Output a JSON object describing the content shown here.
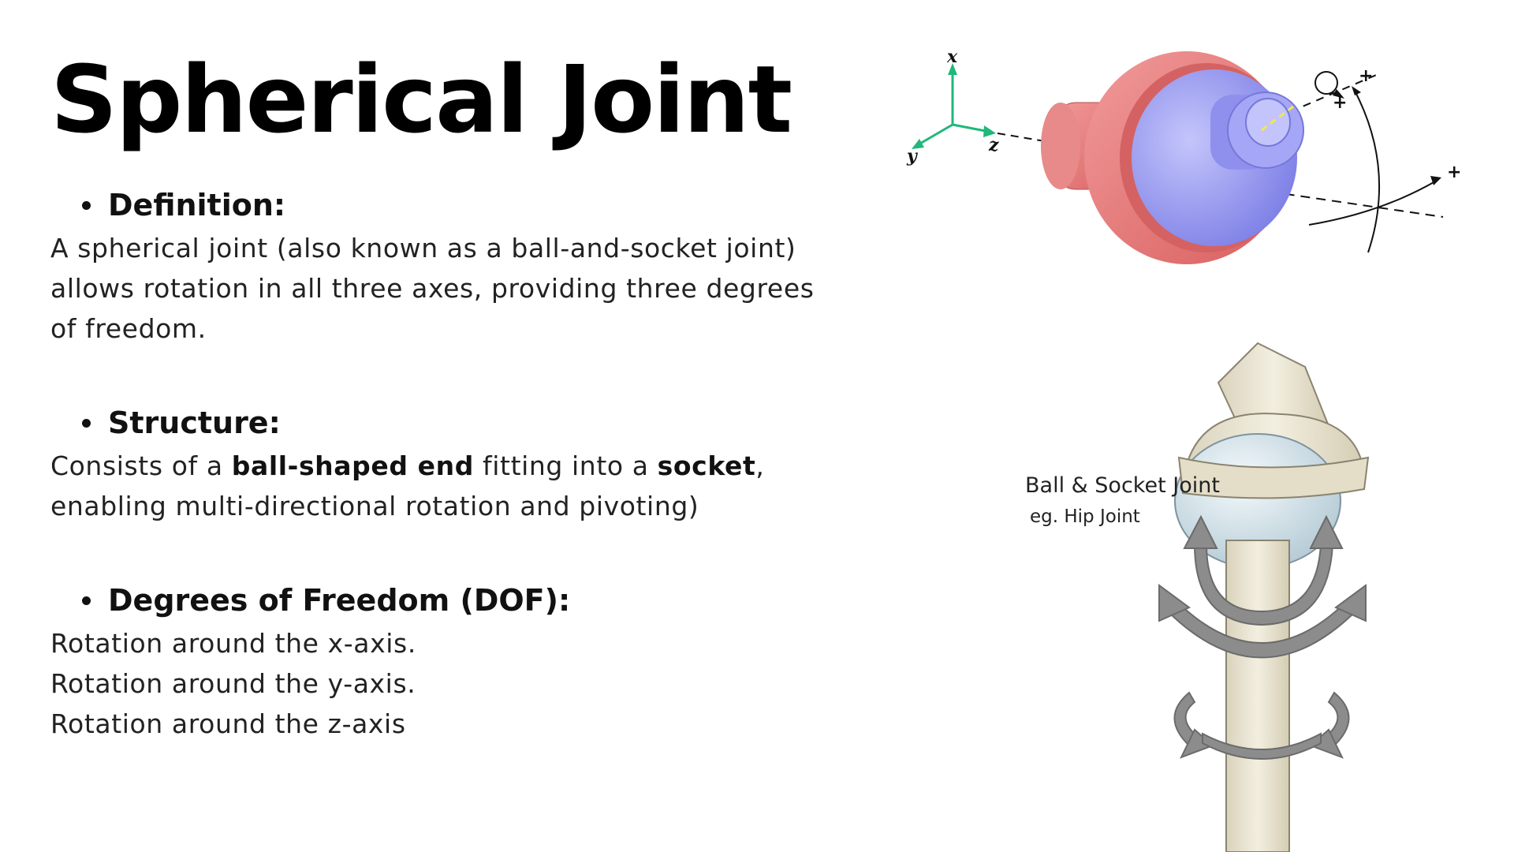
{
  "title": "Spherical Joint",
  "sections": [
    {
      "heading": "Definition:",
      "lines": [
        "A spherical joint (also known as a ball-and-socket joint)",
        "allows rotation in all three axes, providing three degrees",
        "of freedom."
      ]
    },
    {
      "heading": "Structure:",
      "line1": {
        "prefix": "Consists of a ",
        "bold1": "ball-shaped end",
        "middle": " fitting into a ",
        "bold2": "socket",
        "suffix": ","
      },
      "line2": "enabling multi-directional rotation and pivoting)"
    },
    {
      "heading": "Degrees of Freedom (DOF):",
      "lines": [
        "Rotation around the x-axis.",
        "Rotation around the y-axis.",
        "Rotation around the z-axis"
      ]
    }
  ],
  "figure_top": {
    "axes": {
      "x": "x",
      "y": "y",
      "z": "z"
    },
    "plus_sign": "+",
    "colors": {
      "socket": "#e87878",
      "ball": "#9b9cf0",
      "axis": "#1fb87a"
    }
  },
  "figure_bottom": {
    "caption": "Ball & Socket Joint",
    "subcaption": "eg. Hip Joint",
    "colors": {
      "bone": "#ede8d6",
      "ball": "#cfdfe8",
      "arrow": "#8c8c8c"
    }
  }
}
